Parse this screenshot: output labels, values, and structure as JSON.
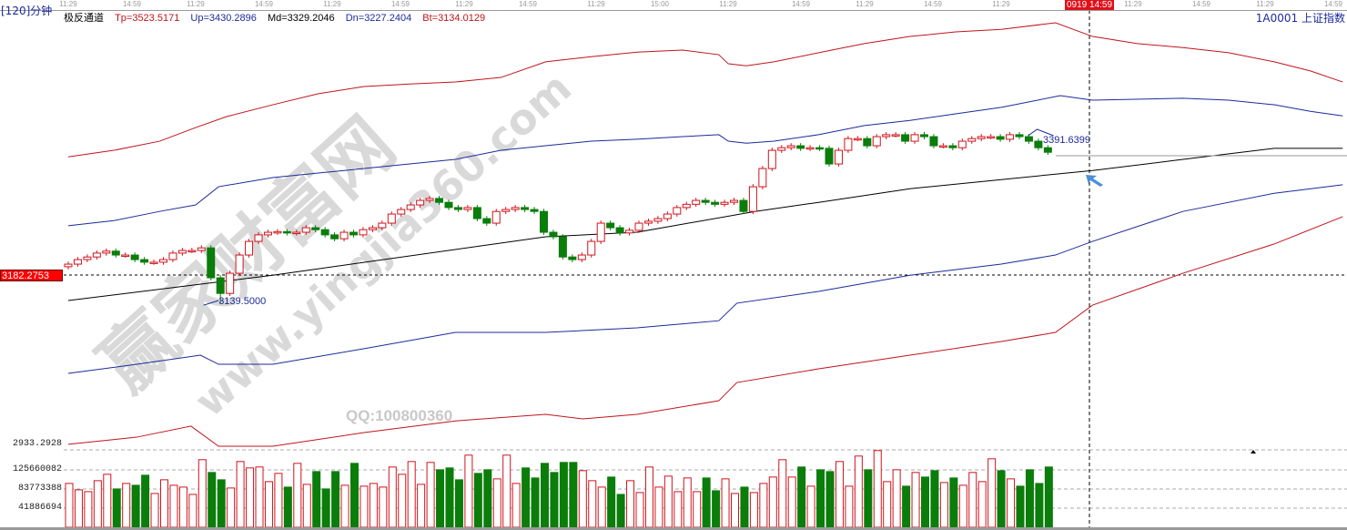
{
  "header": {
    "period": "[120]分钟",
    "time_labels": [
      "11:29",
      "14:59",
      "11:29",
      "14:59",
      "11:29",
      "14:59",
      "11:29",
      "14:59",
      "11:29",
      "15:00",
      "11:29",
      "14:59",
      "11:29",
      "14:59",
      "11:29",
      "11:29",
      "14:59",
      "11:29",
      "14:59"
    ],
    "crosshair_time": "0919 14:59",
    "indicator_name": "极反通道",
    "tp": "Tp=3523.5171",
    "up": "Up=3430.2896",
    "md": "Md=3329.2046",
    "dn": "Dn=3227.2404",
    "bt": "Bt=3134.0129",
    "symbol": "1A0001  上证指数"
  },
  "axis": {
    "crosshair_price": "3182.2753",
    "price_bottom": "2933.2928",
    "volume_ticks": [
      "125660082",
      "83773388",
      "41886694"
    ]
  },
  "annotations": {
    "low_label": "3139.5000",
    "high_label": "3391.6399"
  },
  "watermark": {
    "brand": "赢家财富网",
    "url": "www.yingjia360.com",
    "qq": "QQ:100800360"
  },
  "colors": {
    "up": "#d0141c",
    "down": "#0a7d0a",
    "upper_band": "#1c2a9a",
    "outer_band": "#c0141c",
    "mid_band": "#000000",
    "crosshair_box": "#ff0000"
  },
  "chart_data": {
    "type": "candlestick",
    "first_open": 3195,
    "closes": [
      3199,
      3206,
      3210,
      3216,
      3219,
      3213,
      3213,
      3206,
      3202,
      3202,
      3206,
      3216,
      3220,
      3220,
      3224,
      3178,
      3154,
      3185,
      3213,
      3234,
      3244,
      3248,
      3249,
      3247,
      3248,
      3255,
      3252,
      3244,
      3238,
      3248,
      3244,
      3252,
      3255,
      3262,
      3276,
      3283,
      3290,
      3297,
      3300,
      3294,
      3286,
      3283,
      3286,
      3269,
      3262,
      3280,
      3283,
      3286,
      3283,
      3280,
      3248,
      3241,
      3210,
      3206,
      3213,
      3234,
      3262,
      3255,
      3247,
      3251,
      3262,
      3265,
      3269,
      3276,
      3286,
      3291,
      3297,
      3294,
      3291,
      3294,
      3297,
      3280,
      3318,
      3346,
      3374,
      3378,
      3381,
      3377,
      3378,
      3377,
      3353,
      3374,
      3392,
      3392,
      3381,
      3395,
      3398,
      3398,
      3388,
      3398,
      3395,
      3381,
      3381,
      3378,
      3388,
      3392,
      3395,
      3395,
      3391,
      3398,
      3395,
      3388,
      3378,
      3371
    ],
    "lowest": {
      "index": 16,
      "price": 3139.5
    },
    "highest": {
      "index": 99,
      "price": 3391.6399
    },
    "volumes": [
      96000000.0,
      82000000.0,
      78000000.0,
      102000000.0,
      116000000.0,
      84000000.0,
      96000000.0,
      92000000.0,
      114000000.0,
      74000000.0,
      104000000.0,
      92000000.0,
      88000000.0,
      72000000.0,
      148000000.0,
      120000000.0,
      104000000.0,
      86000000.0,
      144000000.0,
      130000000.0,
      132000000.0,
      100000000.0,
      118000000.0,
      88000000.0,
      140000000.0,
      94000000.0,
      122000000.0,
      84000000.0,
      122000000.0,
      92000000.0,
      140000000.0,
      90000000.0,
      96000000.0,
      88000000.0,
      132000000.0,
      116000000.0,
      144000000.0,
      94000000.0,
      142000000.0,
      126000000.0,
      130000000.0,
      104000000.0,
      158000000.0,
      118000000.0,
      126000000.0,
      106000000.0,
      158000000.0,
      96000000.0,
      130000000.0,
      108000000.0,
      140000000.0,
      120000000.0,
      142000000.0,
      142000000.0,
      124000000.0,
      102000000.0,
      88000000.0,
      110000000.0,
      72000000.0,
      102000000.0,
      76000000.0,
      132000000.0,
      88000000.0,
      112000000.0,
      78000000.0,
      108000000.0,
      78000000.0,
      108000000.0,
      80000000.0,
      106000000.0,
      74000000.0,
      88000000.0,
      76000000.0,
      96000000.0,
      110000000.0,
      148000000.0,
      110000000.0,
      132000000.0,
      90000000.0,
      126000000.0,
      122000000.0,
      144000000.0,
      90000000.0,
      156000000.0,
      126000000.0,
      168000000.0,
      100000000.0,
      126000000.0,
      90000000.0,
      120000000.0,
      110000000.0,
      124000000.0,
      98000000.0,
      108000000.0,
      92000000.0,
      120000000.0,
      100000000.0,
      150000000.0,
      124000000.0,
      106000000.0,
      90000000.0,
      126000000.0,
      96000000.0,
      132000000.0
    ],
    "bands": [
      {
        "name": "Tp",
        "color": "#c0141c",
        "points": [
          [
            0,
            3364
          ],
          [
            4.8,
            3374
          ],
          [
            9.6,
            3388
          ],
          [
            13.4,
            3409
          ],
          [
            16.7,
            3426
          ],
          [
            21.5,
            3444
          ],
          [
            26.3,
            3461
          ],
          [
            31.1,
            3472
          ],
          [
            35.9,
            3476
          ],
          [
            40.7,
            3479
          ],
          [
            45.5,
            3486
          ],
          [
            50.2,
            3510
          ],
          [
            55,
            3518
          ],
          [
            59.8,
            3525
          ],
          [
            64.6,
            3528
          ],
          [
            68.4,
            3521
          ],
          [
            69.4,
            3507
          ],
          [
            71.3,
            3504
          ],
          [
            74.2,
            3510
          ],
          [
            78.9,
            3524
          ],
          [
            83.7,
            3538
          ],
          [
            88.5,
            3549
          ],
          [
            93.3,
            3556
          ],
          [
            98.1,
            3560
          ],
          [
            103.8,
            3570
          ],
          [
            107.7,
            3549
          ],
          [
            112.4,
            3538
          ],
          [
            117.2,
            3532
          ],
          [
            122,
            3524
          ],
          [
            126.8,
            3510
          ],
          [
            130.6,
            3496
          ],
          [
            134,
            3479
          ]
        ]
      },
      {
        "name": "Up",
        "color": "#1c2a9a",
        "points": [
          [
            0,
            3258
          ],
          [
            4.8,
            3266
          ],
          [
            9.6,
            3280
          ],
          [
            13.4,
            3290
          ],
          [
            15.8,
            3318
          ],
          [
            21.5,
            3332
          ],
          [
            26.3,
            3339
          ],
          [
            31.1,
            3346
          ],
          [
            35.9,
            3353
          ],
          [
            40.7,
            3360
          ],
          [
            45.5,
            3374
          ],
          [
            50.2,
            3381
          ],
          [
            55,
            3388
          ],
          [
            59.8,
            3391
          ],
          [
            64.6,
            3395
          ],
          [
            68.4,
            3398
          ],
          [
            69.4,
            3388
          ],
          [
            71.3,
            3385
          ],
          [
            74.2,
            3388
          ],
          [
            78.9,
            3398
          ],
          [
            83.7,
            3412
          ],
          [
            88.5,
            3420
          ],
          [
            93.3,
            3430
          ],
          [
            98.1,
            3440
          ],
          [
            104.3,
            3458
          ],
          [
            107.7,
            3451
          ],
          [
            117.2,
            3454
          ],
          [
            122,
            3451
          ],
          [
            126.8,
            3444
          ],
          [
            130.6,
            3434
          ],
          [
            134,
            3427
          ]
        ]
      },
      {
        "name": "Md",
        "color": "#000000",
        "points": [
          [
            0,
            3143
          ],
          [
            21.5,
            3182
          ],
          [
            50.2,
            3241
          ],
          [
            59.8,
            3248
          ],
          [
            72.2,
            3280
          ],
          [
            78.9,
            3294
          ],
          [
            88.5,
            3315
          ],
          [
            98.1,
            3329
          ],
          [
            107.7,
            3343
          ],
          [
            117.2,
            3360
          ],
          [
            126.8,
            3377
          ],
          [
            134,
            3377
          ]
        ]
      },
      {
        "name": "Dn",
        "color": "#1c2a9a",
        "points": [
          [
            0,
            3031
          ],
          [
            7.2,
            3045
          ],
          [
            13.9,
            3059
          ],
          [
            15.8,
            3045
          ],
          [
            21.5,
            3045
          ],
          [
            31.1,
            3069
          ],
          [
            40.7,
            3094
          ],
          [
            50.2,
            3094
          ],
          [
            59.8,
            3101
          ],
          [
            68.4,
            3112
          ],
          [
            70.3,
            3139
          ],
          [
            78.9,
            3157
          ],
          [
            88.5,
            3182
          ],
          [
            98.1,
            3199
          ],
          [
            103.8,
            3213
          ],
          [
            107.7,
            3234
          ],
          [
            117.2,
            3280
          ],
          [
            126.8,
            3308
          ],
          [
            134,
            3321
          ]
        ]
      },
      {
        "name": "Bt",
        "color": "#c0141c",
        "points": [
          [
            0,
            2922
          ],
          [
            7.2,
            2933
          ],
          [
            12.9,
            2950
          ],
          [
            15.8,
            2919
          ],
          [
            21.5,
            2919
          ],
          [
            31.1,
            2940
          ],
          [
            40.7,
            2958
          ],
          [
            50.2,
            2968
          ],
          [
            54.1,
            2961
          ],
          [
            59.8,
            2968
          ],
          [
            68.4,
            2989
          ],
          [
            70.3,
            3017
          ],
          [
            78.9,
            3038
          ],
          [
            88.5,
            3059
          ],
          [
            98.1,
            3080
          ],
          [
            103.8,
            3094
          ],
          [
            107.7,
            3136
          ],
          [
            117.2,
            3185
          ],
          [
            126.8,
            3230
          ],
          [
            134,
            3272
          ]
        ]
      }
    ]
  }
}
